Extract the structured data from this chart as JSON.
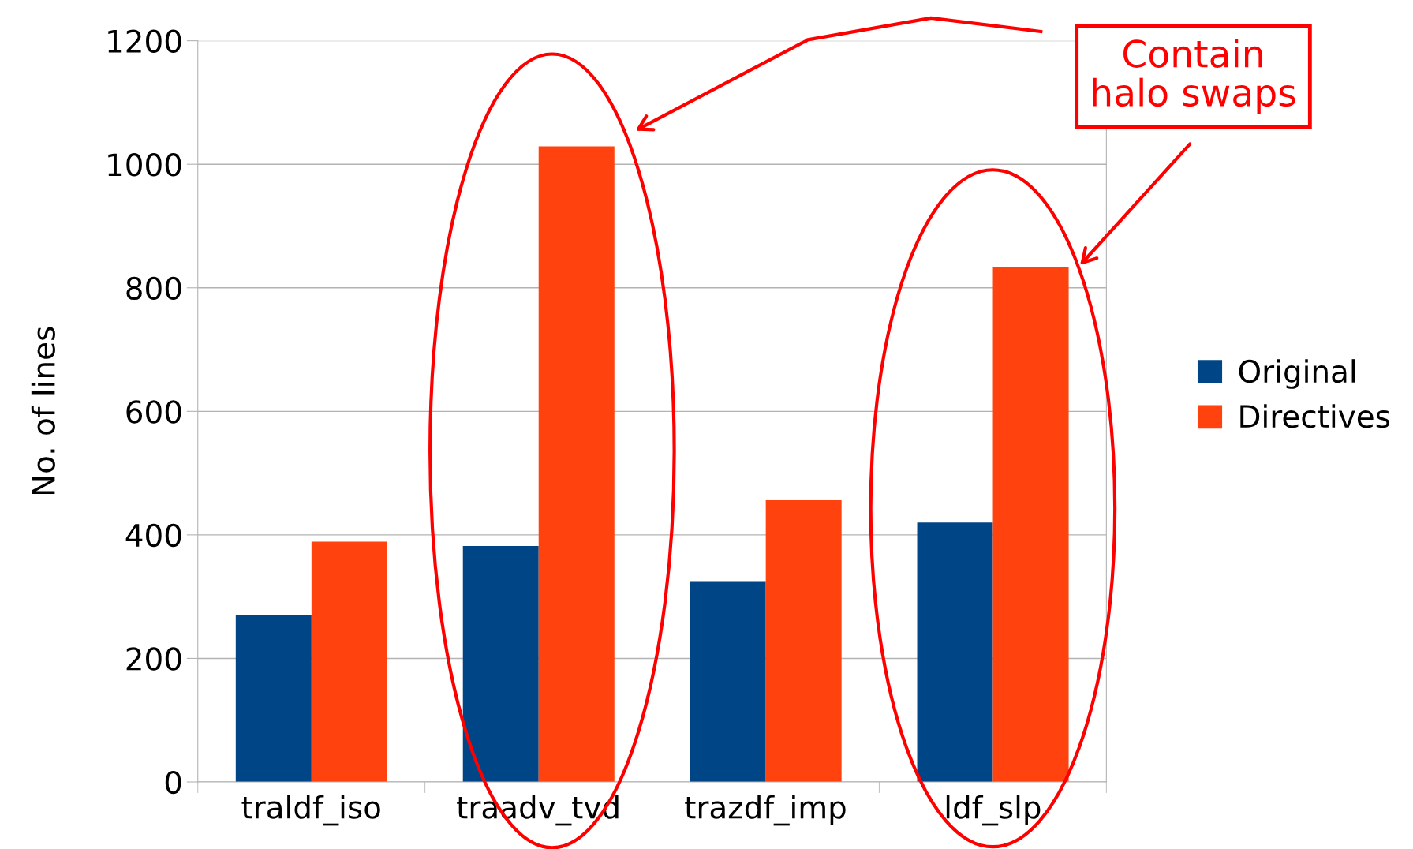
{
  "chart_data": {
    "type": "bar",
    "ylabel": "No. of lines",
    "categories": [
      "traldf_iso",
      "traadv_tvd",
      "trazdf_imp",
      "ldf_slp"
    ],
    "series": [
      {
        "name": "Original",
        "color": "#004586",
        "values": [
          270,
          382,
          325,
          420
        ]
      },
      {
        "name": "Directives",
        "color": "#ff420e",
        "values": [
          389,
          1029,
          456,
          834
        ]
      }
    ],
    "ylim": [
      0,
      1200
    ],
    "yticks": [
      0,
      200,
      400,
      600,
      800,
      1000,
      1200
    ],
    "grid": "y",
    "legend": "right",
    "annotations": [
      "Contain\nhalo swaps"
    ]
  }
}
